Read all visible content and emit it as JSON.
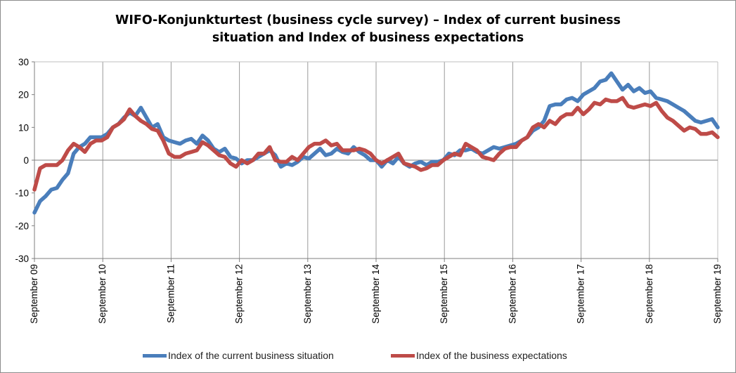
{
  "chart_data": {
    "type": "line",
    "title": "WIFO-Konjunkturtest (business cycle survey) – Index of current business situation and Index of business expectations",
    "title_lines": [
      "WIFO-Konjunkturtest (business cycle survey) – Index of current business",
      "situation and Index of business expectations"
    ],
    "xlabel": "",
    "ylabel": "",
    "ylim": [
      -30,
      30
    ],
    "yticks": [
      -30,
      -20,
      -10,
      0,
      10,
      20,
      30
    ],
    "x_start": "2009-09",
    "x_end": "2019-09",
    "x_tick_labels": [
      "September 09",
      "September 10",
      "September 11",
      "September 12",
      "September 13",
      "September 14",
      "September 15",
      "September 16",
      "September 17",
      "September 18",
      "September 19"
    ],
    "grid": "vertical lines at each September",
    "legend": "bottom",
    "series": [
      {
        "name": "Index of the current business situation",
        "color": "#4a7ebb",
        "values": [
          -16,
          -12.5,
          -11,
          -9,
          -8.5,
          -6,
          -4,
          2,
          4,
          5,
          7,
          7,
          7,
          8,
          10,
          11,
          13,
          14.5,
          13.5,
          16,
          13,
          10,
          11,
          7,
          6,
          5.5,
          5,
          6,
          6.5,
          5,
          7.5,
          6,
          3.5,
          2.5,
          3.5,
          1,
          0.5,
          -1,
          0,
          0,
          1,
          2,
          3,
          1.5,
          -2,
          -1,
          -1.5,
          -0.5,
          1,
          0.5,
          2,
          3.5,
          1.5,
          2,
          3.5,
          2.5,
          2,
          4,
          2.5,
          1.5,
          0,
          0,
          -2,
          0,
          -1,
          1,
          -1,
          -2,
          -1,
          -0.5,
          -1.5,
          -0.5,
          -0.5,
          0,
          2,
          1.5,
          3,
          3,
          3.5,
          2.5,
          2,
          3,
          4,
          3.5,
          4,
          4.5,
          5,
          6,
          7,
          9,
          10,
          12,
          16.5,
          17,
          17,
          18.5,
          19,
          18,
          20,
          21,
          22,
          24,
          24.5,
          26.5,
          24,
          21.5,
          23,
          21,
          22,
          20.5,
          21,
          19,
          18.5,
          18,
          17,
          16,
          15,
          13.5,
          12,
          11.5,
          12,
          12.5,
          10
        ]
      },
      {
        "name": "Index of the business expectations",
        "color": "#be4b48",
        "values": [
          -9,
          -2.5,
          -1.5,
          -1.5,
          -1.5,
          0,
          3,
          5,
          4,
          2.5,
          5,
          6,
          6,
          7,
          10,
          11,
          12.5,
          15.5,
          13.5,
          12,
          11,
          9.5,
          9,
          6,
          2,
          1,
          1,
          2,
          2.5,
          3,
          5.5,
          4.5,
          3,
          1.5,
          1,
          -1,
          -2,
          0,
          -1,
          0,
          2,
          2,
          4,
          0,
          -0.5,
          -0.5,
          1,
          0,
          2,
          4,
          5,
          5,
          6,
          4.5,
          5,
          3,
          3,
          3,
          3.5,
          3,
          2,
          0,
          -1,
          0,
          1,
          2,
          -1,
          -1.5,
          -2,
          -3,
          -2.5,
          -1.5,
          -1.5,
          0,
          1,
          2,
          1.5,
          5,
          4,
          3,
          1,
          0.5,
          0,
          2,
          3.5,
          4,
          4,
          6,
          7,
          10,
          11,
          10,
          12,
          11,
          13,
          14,
          14,
          16,
          14,
          15.5,
          17.5,
          17,
          18.5,
          18,
          18,
          19,
          16.5,
          16,
          16.5,
          17,
          16.5,
          17.5,
          15,
          13,
          12,
          10.5,
          9,
          10,
          9.5,
          8,
          8,
          8.5,
          7
        ]
      }
    ]
  },
  "legend": {
    "items": [
      {
        "label": "Index of the current business situation",
        "color": "#4a7ebb"
      },
      {
        "label": "Index of the business expectations",
        "color": "#be4b48"
      }
    ]
  }
}
